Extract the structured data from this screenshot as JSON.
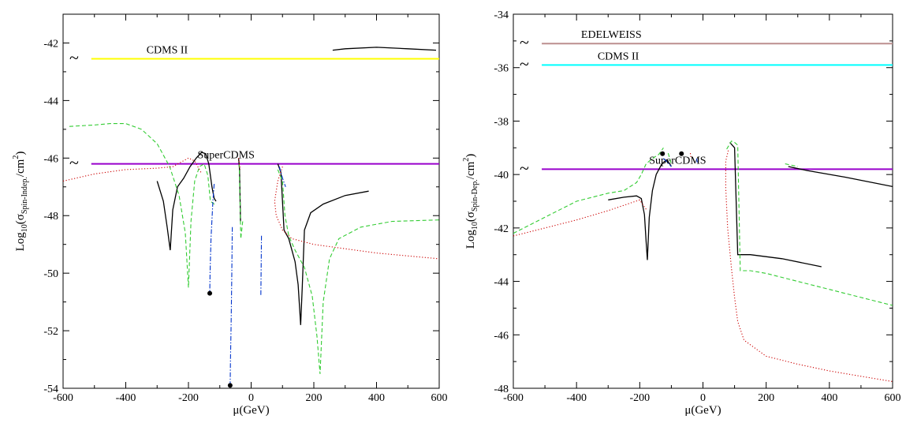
{
  "chart_data": [
    {
      "type": "line",
      "xlabel": "μ(GeV)",
      "ylabel": {
        "base": "Log",
        "sub1": "10",
        "open": "(σ",
        "sub2": "Spin-Indep.",
        "mid": "/cm",
        "sup": "2",
        "close": ")"
      },
      "xlim": [
        -600,
        600
      ],
      "ylim": [
        -54,
        -41
      ],
      "xticks": [
        -600,
        -400,
        -200,
        0,
        200,
        400,
        600
      ],
      "yticks": [
        -54,
        -52,
        -50,
        -48,
        -46,
        -44,
        -42
      ],
      "limits": [
        {
          "name": "CDMS II",
          "y": -42.55,
          "color": "#ffff00",
          "x_start": -510,
          "tilde": "~"
        },
        {
          "name": "SuperCDMS",
          "y": -46.2,
          "color": "#9900cc",
          "x_start": -510,
          "tilde": "~"
        }
      ],
      "series": [
        {
          "style": "solid-black",
          "color": "#000000",
          "segments": [
            [
              [
                -300,
                -46.8
              ],
              [
                -280,
                -47.5
              ],
              [
                -268,
                -48.4
              ],
              [
                -258,
                -49.2
              ],
              [
                -250,
                -47.8
              ],
              [
                -235,
                -47.0
              ],
              [
                -215,
                -46.7
              ],
              [
                -195,
                -46.3
              ],
              [
                -175,
                -46.0
              ],
              [
                -158,
                -45.8
              ],
              [
                -145,
                -45.85
              ],
              [
                -135,
                -46.2
              ],
              [
                -125,
                -47.0
              ],
              [
                -118,
                -47.4
              ],
              [
                -112,
                -47.5
              ]
            ],
            [
              [
                -40,
                -46.0
              ],
              [
                -37,
                -46.4
              ],
              [
                -34,
                -48.2
              ]
            ],
            [
              [
                85,
                -46.2
              ],
              [
                95,
                -46.5
              ],
              [
                105,
                -48.5
              ],
              [
                120,
                -48.8
              ],
              [
                140,
                -49.6
              ],
              [
                150,
                -50.4
              ],
              [
                158,
                -51.8
              ],
              [
                163,
                -50.5
              ],
              [
                170,
                -48.5
              ],
              [
                190,
                -47.9
              ],
              [
                230,
                -47.6
              ],
              [
                300,
                -47.3
              ],
              [
                375,
                -47.15
              ]
            ],
            [
              [
                260,
                -42.25
              ],
              [
                300,
                -42.2
              ],
              [
                400,
                -42.15
              ],
              [
                500,
                -42.2
              ],
              [
                590,
                -42.25
              ]
            ]
          ]
        },
        {
          "style": "dashed-green",
          "color": "#33cc33",
          "segments": [
            [
              [
                -580,
                -44.9
              ],
              [
                -500,
                -44.85
              ],
              [
                -450,
                -44.8
              ],
              [
                -400,
                -44.8
              ],
              [
                -350,
                -45.0
              ],
              [
                -300,
                -45.5
              ],
              [
                -260,
                -46.3
              ],
              [
                -230,
                -47.3
              ],
              [
                -210,
                -48.6
              ],
              [
                -200,
                -50.5
              ],
              [
                -192,
                -48.2
              ],
              [
                -180,
                -46.8
              ],
              [
                -165,
                -46.3
              ],
              [
                -150,
                -46.2
              ],
              [
                -138,
                -46.6
              ],
              [
                -130,
                -47.5
              ],
              [
                -118,
                -47.6
              ],
              [
                -110,
                -47.6
              ]
            ],
            [
              [
                -38,
                -46.2
              ],
              [
                -33,
                -48.8
              ],
              [
                -27,
                -48.2
              ]
            ],
            [
              [
                85,
                -46.4
              ],
              [
                100,
                -46.8
              ],
              [
                108,
                -48.0
              ],
              [
                120,
                -48.7
              ],
              [
                140,
                -49.2
              ],
              [
                170,
                -49.8
              ],
              [
                195,
                -50.8
              ],
              [
                210,
                -52.2
              ],
              [
                220,
                -53.5
              ],
              [
                230,
                -51.0
              ],
              [
                250,
                -49.5
              ],
              [
                280,
                -48.8
              ],
              [
                350,
                -48.4
              ],
              [
                450,
                -48.2
              ],
              [
                600,
                -48.15
              ]
            ]
          ]
        },
        {
          "style": "dash-dot-blue",
          "color": "#0033cc",
          "segments": [
            [
              [
                -118,
                -46.9
              ],
              [
                -122,
                -47.5
              ],
              [
                -128,
                -48.8
              ],
              [
                -131,
                -50.0
              ],
              [
                -132,
                -50.7
              ]
            ],
            [
              [
                -60,
                -48.4
              ],
              [
                -62,
                -50.2
              ],
              [
                -64,
                -51.8
              ],
              [
                -66,
                -53.0
              ],
              [
                -67,
                -53.9
              ]
            ],
            [
              [
                33,
                -48.7
              ],
              [
                32,
                -49.8
              ],
              [
                31,
                -50.8
              ]
            ],
            [
              [
                90,
                -46.3
              ],
              [
                100,
                -46.7
              ],
              [
                110,
                -47.0
              ]
            ]
          ]
        },
        {
          "style": "dotted-red",
          "color": "#cc0000",
          "segments": [
            [
              [
                -600,
                -46.8
              ],
              [
                -500,
                -46.55
              ],
              [
                -400,
                -46.4
              ],
              [
                -300,
                -46.35
              ],
              [
                -250,
                -46.3
              ],
              [
                -200,
                -46.0
              ],
              [
                -180,
                -46.1
              ],
              [
                -160,
                -46.5
              ]
            ],
            [
              [
                -40,
                -46.0
              ],
              [
                -35,
                -46.4
              ]
            ],
            [
              [
                100,
                -46.3
              ],
              [
                85,
                -46.8
              ],
              [
                75,
                -47.5
              ],
              [
                80,
                -48.0
              ],
              [
                100,
                -48.5
              ],
              [
                130,
                -48.8
              ],
              [
                200,
                -49.0
              ],
              [
                300,
                -49.15
              ],
              [
                400,
                -49.3
              ],
              [
                500,
                -49.4
              ],
              [
                600,
                -49.5
              ]
            ]
          ]
        }
      ],
      "markers": [
        [
          -132,
          -50.7
        ],
        [
          -67,
          -53.9
        ]
      ]
    },
    {
      "type": "line",
      "xlabel": "μ(GeV)",
      "ylabel": {
        "base": "Log",
        "sub1": "10",
        "open": "(σ",
        "sub2": "Spin-Dep.",
        "mid": "/cm",
        "sup": "2",
        "close": ")"
      },
      "xlim": [
        -600,
        600
      ],
      "ylim": [
        -48,
        -34
      ],
      "xticks": [
        -600,
        -400,
        -200,
        0,
        200,
        400,
        600
      ],
      "yticks": [
        -48,
        -46,
        -44,
        -42,
        -40,
        -38,
        -36,
        -34
      ],
      "limits": [
        {
          "name": "EDELWEISS",
          "y": -35.1,
          "color": "#bc8f8f",
          "x_start": -510,
          "tilde": "~"
        },
        {
          "name": "CDMS II",
          "y": -35.9,
          "color": "#00ffff",
          "x_start": -510,
          "tilde": "~"
        },
        {
          "name": "SuperCDMS",
          "y": -39.8,
          "color": "#9900cc",
          "x_start": -510,
          "tilde": "~"
        }
      ],
      "series": [
        {
          "style": "solid-black",
          "color": "#000000",
          "segments": [
            [
              [
                -300,
                -40.95
              ],
              [
                -250,
                -40.85
              ],
              [
                -210,
                -40.8
              ],
              [
                -195,
                -40.9
              ],
              [
                -185,
                -41.5
              ],
              [
                -180,
                -42.5
              ],
              [
                -176,
                -43.2
              ],
              [
                -170,
                -41.6
              ],
              [
                -160,
                -40.6
              ],
              [
                -148,
                -40.0
              ],
              [
                -130,
                -39.6
              ],
              [
                -115,
                -39.45
              ],
              [
                -105,
                -39.6
              ],
              [
                -100,
                -39.7
              ]
            ],
            [
              [
                85,
                -38.8
              ],
              [
                100,
                -39.0
              ],
              [
                110,
                -43.0
              ],
              [
                150,
                -43.0
              ],
              [
                250,
                -43.15
              ],
              [
                375,
                -43.45
              ]
            ],
            [
              [
                270,
                -39.7
              ],
              [
                330,
                -39.85
              ],
              [
                450,
                -40.1
              ],
              [
                600,
                -40.45
              ]
            ]
          ]
        },
        {
          "style": "dashed-green",
          "color": "#33cc33",
          "segments": [
            [
              [
                -600,
                -42.2
              ],
              [
                -500,
                -41.6
              ],
              [
                -400,
                -41.0
              ],
              [
                -300,
                -40.7
              ],
              [
                -250,
                -40.6
              ],
              [
                -210,
                -40.3
              ],
              [
                -195,
                -40.0
              ],
              [
                -180,
                -39.6
              ],
              [
                -160,
                -39.4
              ],
              [
                -140,
                -39.25
              ],
              [
                -125,
                -39.0
              ]
            ],
            [
              [
                -110,
                -39.2
              ],
              [
                -100,
                -39.6
              ]
            ],
            [
              [
                75,
                -39.05
              ],
              [
                90,
                -38.75
              ],
              [
                100,
                -38.8
              ],
              [
                110,
                -38.9
              ],
              [
                118,
                -43.6
              ],
              [
                150,
                -43.6
              ],
              [
                200,
                -43.7
              ],
              [
                300,
                -44.0
              ],
              [
                400,
                -44.3
              ],
              [
                500,
                -44.6
              ],
              [
                600,
                -44.9
              ]
            ],
            [
              [
                260,
                -39.6
              ],
              [
                300,
                -39.7
              ]
            ]
          ]
        },
        {
          "style": "dash-dot-blue",
          "color": "#0033cc",
          "segments": [
            [
              [
                -125,
                -39.4
              ],
              [
                -112,
                -39.55
              ],
              [
                -100,
                -39.7
              ]
            ],
            [
              [
                -20,
                -39.4
              ],
              [
                -18,
                -39.55
              ]
            ]
          ]
        },
        {
          "style": "dotted-red",
          "color": "#cc0000",
          "segments": [
            [
              [
                -600,
                -42.3
              ],
              [
                -500,
                -42.0
              ],
              [
                -400,
                -41.7
              ],
              [
                -300,
                -41.35
              ],
              [
                -200,
                -40.95
              ],
              [
                -180,
                -41.3
              ]
            ],
            [
              [
                -40,
                -39.2
              ],
              [
                -38,
                -39.4
              ]
            ],
            [
              [
                80,
                -39.1
              ],
              [
                72,
                -39.5
              ],
              [
                72,
                -40.5
              ],
              [
                78,
                -42.0
              ],
              [
                90,
                -43.5
              ],
              [
                100,
                -44.6
              ],
              [
                110,
                -45.5
              ],
              [
                130,
                -46.2
              ],
              [
                200,
                -46.8
              ],
              [
                300,
                -47.1
              ],
              [
                400,
                -47.35
              ],
              [
                500,
                -47.55
              ],
              [
                600,
                -47.75
              ]
            ]
          ]
        }
      ],
      "markers": [
        [
          -128,
          -39.22
        ],
        [
          -68,
          -39.22
        ]
      ]
    }
  ]
}
